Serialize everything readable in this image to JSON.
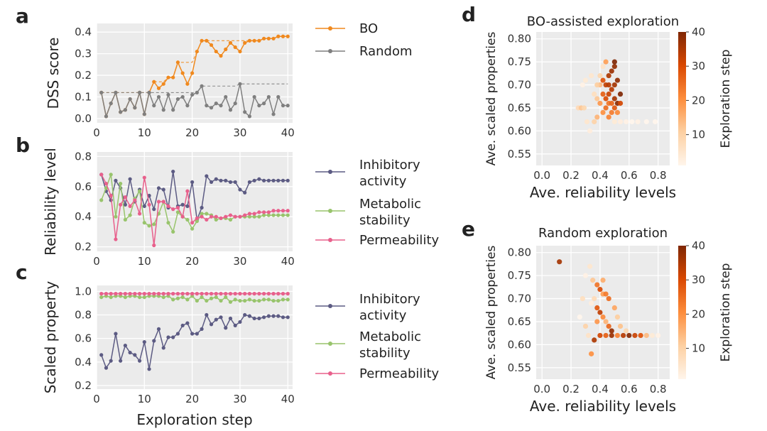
{
  "chart_data": [
    {
      "panel": "a",
      "type": "line",
      "xlabel": "",
      "ylabel": "DSS score",
      "xlim": [
        0,
        41
      ],
      "ylim": [
        -0.02,
        0.44
      ],
      "xticks": [
        "0",
        "10",
        "20",
        "30",
        "40"
      ],
      "yticks": [
        "0.0",
        "0.1",
        "0.2",
        "0.3",
        "0.4"
      ],
      "legend_position": "right",
      "series": [
        {
          "name": "BO",
          "color": "#f0891e",
          "x": [
            1,
            2,
            3,
            4,
            5,
            6,
            7,
            8,
            9,
            10,
            11,
            12,
            13,
            14,
            15,
            16,
            17,
            18,
            19,
            20,
            21,
            22,
            23,
            24,
            25,
            26,
            27,
            28,
            29,
            30,
            31,
            32,
            33,
            34,
            35,
            36,
            37,
            38,
            39,
            40
          ],
          "values": [
            0.12,
            0.01,
            0.07,
            0.12,
            0.03,
            0.04,
            0.09,
            0.05,
            0.12,
            0.02,
            0.12,
            0.17,
            0.14,
            0.16,
            0.19,
            0.19,
            0.26,
            0.21,
            0.16,
            0.21,
            0.31,
            0.36,
            0.36,
            0.34,
            0.31,
            0.29,
            0.32,
            0.35,
            0.33,
            0.31,
            0.35,
            0.36,
            0.36,
            0.36,
            0.37,
            0.37,
            0.37,
            0.38,
            0.38,
            0.38
          ],
          "best_so_far": [
            0.12,
            0.12,
            0.12,
            0.12,
            0.12,
            0.12,
            0.12,
            0.12,
            0.12,
            0.12,
            0.12,
            0.17,
            0.17,
            0.17,
            0.19,
            0.19,
            0.26,
            0.26,
            0.26,
            0.26,
            0.31,
            0.36,
            0.36,
            0.36,
            0.36,
            0.36,
            0.36,
            0.36,
            0.36,
            0.36,
            0.36,
            0.36,
            0.36,
            0.36,
            0.37,
            0.37,
            0.37,
            0.38,
            0.38,
            0.38
          ]
        },
        {
          "name": "Random",
          "color": "#7f7f7f",
          "x": [
            1,
            2,
            3,
            4,
            5,
            6,
            7,
            8,
            9,
            10,
            11,
            12,
            13,
            14,
            15,
            16,
            17,
            18,
            19,
            20,
            21,
            22,
            23,
            24,
            25,
            26,
            27,
            28,
            29,
            30,
            31,
            32,
            33,
            34,
            35,
            36,
            37,
            38,
            39,
            40
          ],
          "values": [
            0.12,
            0.01,
            0.07,
            0.12,
            0.03,
            0.04,
            0.09,
            0.05,
            0.12,
            0.02,
            0.12,
            0.06,
            0.1,
            0.04,
            0.11,
            0.04,
            0.09,
            0.1,
            0.06,
            0.11,
            0.12,
            0.15,
            0.06,
            0.05,
            0.07,
            0.06,
            0.1,
            0.04,
            0.07,
            0.16,
            0.03,
            0.01,
            0.1,
            0.06,
            0.07,
            0.1,
            0.02,
            0.1,
            0.06,
            0.06
          ],
          "best_so_far": [
            0.12,
            0.12,
            0.12,
            0.12,
            0.12,
            0.12,
            0.12,
            0.12,
            0.12,
            0.12,
            0.12,
            0.12,
            0.12,
            0.12,
            0.12,
            0.12,
            0.12,
            0.12,
            0.12,
            0.12,
            0.12,
            0.15,
            0.15,
            0.15,
            0.15,
            0.15,
            0.15,
            0.15,
            0.15,
            0.16,
            0.16,
            0.16,
            0.16,
            0.16,
            0.16,
            0.16,
            0.16,
            0.16,
            0.16,
            0.16
          ]
        }
      ]
    },
    {
      "panel": "b",
      "type": "line",
      "xlabel": "",
      "ylabel": "Reliability level",
      "xlim": [
        0,
        41
      ],
      "ylim": [
        0.17,
        0.83
      ],
      "xticks": [
        "0",
        "10",
        "20",
        "30",
        "40"
      ],
      "yticks": [
        "0.2",
        "0.4",
        "0.6",
        "0.8"
      ],
      "legend_position": "right",
      "series": [
        {
          "name": "Inhibitory activity",
          "label_lines": [
            "Inhibitory",
            "activity"
          ],
          "color": "#5c5b83",
          "values": [
            0.68,
            0.57,
            0.51,
            0.64,
            0.59,
            0.48,
            0.65,
            0.5,
            0.58,
            0.47,
            0.54,
            0.45,
            0.59,
            0.58,
            0.46,
            0.7,
            0.47,
            0.48,
            0.47,
            0.63,
            0.38,
            0.46,
            0.67,
            0.63,
            0.65,
            0.64,
            0.64,
            0.63,
            0.63,
            0.58,
            0.56,
            0.63,
            0.64,
            0.65,
            0.64,
            0.64,
            0.64,
            0.64,
            0.64,
            0.64
          ]
        },
        {
          "name": "Metabolic stability",
          "label_lines": [
            "Metabolic",
            "stability"
          ],
          "color": "#98c46c",
          "values": [
            0.51,
            0.59,
            0.68,
            0.4,
            0.62,
            0.38,
            0.41,
            0.52,
            0.57,
            0.36,
            0.34,
            0.35,
            0.42,
            0.5,
            0.36,
            0.3,
            0.43,
            0.4,
            0.38,
            0.32,
            0.37,
            0.42,
            0.42,
            0.41,
            0.38,
            0.39,
            0.39,
            0.38,
            0.4,
            0.4,
            0.4,
            0.4,
            0.4,
            0.4,
            0.41,
            0.41,
            0.41,
            0.41,
            0.41,
            0.41
          ]
        },
        {
          "name": "Permeability",
          "label_lines": [
            "Permeability"
          ],
          "color": "#e8608c",
          "values": [
            0.68,
            0.62,
            0.54,
            0.25,
            0.48,
            0.53,
            0.47,
            0.51,
            0.42,
            0.66,
            0.48,
            0.21,
            0.5,
            0.5,
            0.47,
            0.45,
            0.46,
            0.4,
            0.57,
            0.36,
            0.39,
            0.4,
            0.38,
            0.4,
            0.4,
            0.39,
            0.4,
            0.41,
            0.4,
            0.4,
            0.41,
            0.42,
            0.42,
            0.43,
            0.43,
            0.43,
            0.44,
            0.44,
            0.44,
            0.44
          ]
        }
      ]
    },
    {
      "panel": "c",
      "type": "line",
      "xlabel": "Exploration step",
      "ylabel": "Scaled property",
      "xlim": [
        0,
        41
      ],
      "ylim": [
        0.17,
        1.05
      ],
      "xticks": [
        "0",
        "10",
        "20",
        "30",
        "40"
      ],
      "yticks": [
        "0.2",
        "0.4",
        "0.6",
        "0.8",
        "1.0"
      ],
      "legend_position": "right",
      "series": [
        {
          "name": "Inhibitory activity",
          "label_lines": [
            "Inhibitory",
            "activity"
          ],
          "color": "#5c5b83",
          "values": [
            0.46,
            0.35,
            0.41,
            0.64,
            0.41,
            0.54,
            0.48,
            0.46,
            0.41,
            0.57,
            0.34,
            0.58,
            0.68,
            0.52,
            0.61,
            0.61,
            0.64,
            0.71,
            0.73,
            0.64,
            0.64,
            0.68,
            0.8,
            0.72,
            0.76,
            0.78,
            0.69,
            0.77,
            0.71,
            0.74,
            0.8,
            0.79,
            0.77,
            0.77,
            0.78,
            0.79,
            0.79,
            0.79,
            0.78,
            0.78
          ]
        },
        {
          "name": "Metabolic stability",
          "label_lines": [
            "Metabolic",
            "stability"
          ],
          "color": "#98c46c",
          "values": [
            0.95,
            0.96,
            0.95,
            0.96,
            0.96,
            0.95,
            0.96,
            0.96,
            0.95,
            0.95,
            0.96,
            0.96,
            0.96,
            0.95,
            0.96,
            0.93,
            0.94,
            0.95,
            0.93,
            0.96,
            0.92,
            0.95,
            0.92,
            0.94,
            0.95,
            0.92,
            0.95,
            0.91,
            0.93,
            0.92,
            0.92,
            0.93,
            0.92,
            0.92,
            0.93,
            0.93,
            0.92,
            0.92,
            0.93,
            0.93
          ]
        },
        {
          "name": "Permeability",
          "label_lines": [
            "Permeability"
          ],
          "color": "#e8608c",
          "values": [
            0.98,
            0.98,
            0.98,
            0.98,
            0.98,
            0.98,
            0.98,
            0.98,
            0.98,
            0.98,
            0.98,
            0.98,
            0.98,
            0.98,
            0.98,
            0.98,
            0.98,
            0.98,
            0.98,
            0.98,
            0.98,
            0.98,
            0.98,
            0.98,
            0.98,
            0.98,
            0.98,
            0.98,
            0.98,
            0.98,
            0.98,
            0.98,
            0.98,
            0.98,
            0.98,
            0.98,
            0.98,
            0.98,
            0.98,
            0.98
          ]
        }
      ]
    },
    {
      "panel": "d",
      "type": "scatter",
      "title": "BO-assisted exploration",
      "xlabel": "Ave. reliability levels",
      "ylabel": "Ave. scaled properties",
      "xlim": [
        -0.04,
        0.88
      ],
      "ylim": [
        0.525,
        0.815
      ],
      "xticks": [
        "0.0",
        "0.2",
        "0.4",
        "0.6",
        "0.8"
      ],
      "yticks": [
        "0.55",
        "0.60",
        "0.65",
        "0.70",
        "0.75",
        "0.80"
      ],
      "colorbar": {
        "label": "Exploration step",
        "min": 1,
        "max": 40,
        "ticks": [
          "10",
          "20",
          "30",
          "40"
        ]
      },
      "points": [
        [
          0.25,
          0.65,
          8
        ],
        [
          0.27,
          0.65,
          12
        ],
        [
          0.29,
          0.65,
          9
        ],
        [
          0.33,
          0.6,
          3
        ],
        [
          0.31,
          0.62,
          5
        ],
        [
          0.36,
          0.62,
          10
        ],
        [
          0.38,
          0.63,
          15
        ],
        [
          0.38,
          0.67,
          12
        ],
        [
          0.4,
          0.7,
          14
        ],
        [
          0.42,
          0.74,
          6
        ],
        [
          0.44,
          0.75,
          18
        ],
        [
          0.4,
          0.72,
          9
        ],
        [
          0.36,
          0.68,
          7
        ],
        [
          0.34,
          0.72,
          5
        ],
        [
          0.3,
          0.71,
          4
        ],
        [
          0.28,
          0.7,
          2
        ],
        [
          0.42,
          0.64,
          20
        ],
        [
          0.46,
          0.63,
          22
        ],
        [
          0.5,
          0.62,
          4
        ],
        [
          0.54,
          0.62,
          3
        ],
        [
          0.58,
          0.62,
          2
        ],
        [
          0.62,
          0.62,
          1
        ],
        [
          0.66,
          0.62,
          2
        ],
        [
          0.72,
          0.62,
          1
        ],
        [
          0.78,
          0.62,
          1
        ],
        [
          0.46,
          0.66,
          24
        ],
        [
          0.48,
          0.66,
          26
        ],
        [
          0.5,
          0.65,
          28
        ],
        [
          0.44,
          0.67,
          30
        ],
        [
          0.46,
          0.68,
          32
        ],
        [
          0.48,
          0.69,
          34
        ],
        [
          0.5,
          0.7,
          36
        ],
        [
          0.52,
          0.71,
          38
        ],
        [
          0.54,
          0.68,
          40
        ],
        [
          0.52,
          0.66,
          39
        ],
        [
          0.44,
          0.7,
          33
        ],
        [
          0.46,
          0.72,
          35
        ],
        [
          0.48,
          0.73,
          37
        ],
        [
          0.5,
          0.74,
          38
        ],
        [
          0.5,
          0.75,
          40
        ],
        [
          0.42,
          0.68,
          27
        ],
        [
          0.44,
          0.65,
          25
        ],
        [
          0.48,
          0.64,
          23
        ],
        [
          0.52,
          0.64,
          21
        ],
        [
          0.54,
          0.66,
          31
        ],
        [
          0.4,
          0.66,
          19
        ],
        [
          0.38,
          0.7,
          11
        ],
        [
          0.42,
          0.71,
          29
        ],
        [
          0.5,
          0.67,
          36
        ],
        [
          0.46,
          0.7,
          34
        ]
      ]
    },
    {
      "panel": "e",
      "type": "scatter",
      "title": "Random exploration",
      "xlabel": "Ave. reliability levels",
      "ylabel": "Ave. scaled properties",
      "xlim": [
        -0.04,
        0.88
      ],
      "ylim": [
        0.525,
        0.815
      ],
      "xticks": [
        "0.0",
        "0.2",
        "0.4",
        "0.6",
        "0.8"
      ],
      "yticks": [
        "0.55",
        "0.60",
        "0.65",
        "0.70",
        "0.75",
        "0.80"
      ],
      "colorbar": {
        "label": "Exploration step",
        "min": 1,
        "max": 40,
        "ticks": [
          "10",
          "20",
          "30",
          "40"
        ]
      },
      "points": [
        [
          0.12,
          0.78,
          36
        ],
        [
          0.3,
          0.75,
          2
        ],
        [
          0.33,
          0.77,
          5
        ],
        [
          0.35,
          0.74,
          12
        ],
        [
          0.38,
          0.73,
          24
        ],
        [
          0.4,
          0.72,
          30
        ],
        [
          0.42,
          0.71,
          18
        ],
        [
          0.36,
          0.7,
          8
        ],
        [
          0.34,
          0.69,
          3
        ],
        [
          0.38,
          0.68,
          28
        ],
        [
          0.4,
          0.67,
          33
        ],
        [
          0.42,
          0.66,
          21
        ],
        [
          0.44,
          0.65,
          15
        ],
        [
          0.46,
          0.64,
          26
        ],
        [
          0.48,
          0.63,
          38
        ],
        [
          0.3,
          0.64,
          10
        ],
        [
          0.32,
          0.62,
          6
        ],
        [
          0.36,
          0.61,
          35
        ],
        [
          0.4,
          0.62,
          31
        ],
        [
          0.44,
          0.62,
          27
        ],
        [
          0.48,
          0.62,
          37
        ],
        [
          0.52,
          0.62,
          22
        ],
        [
          0.56,
          0.62,
          34
        ],
        [
          0.6,
          0.62,
          39
        ],
        [
          0.64,
          0.62,
          32
        ],
        [
          0.68,
          0.62,
          29
        ],
        [
          0.72,
          0.62,
          14
        ],
        [
          0.76,
          0.62,
          4
        ],
        [
          0.8,
          0.62,
          2
        ],
        [
          0.34,
          0.58,
          20
        ],
        [
          0.46,
          0.7,
          25
        ],
        [
          0.5,
          0.68,
          17
        ],
        [
          0.52,
          0.66,
          11
        ],
        [
          0.54,
          0.64,
          13
        ],
        [
          0.58,
          0.63,
          9
        ],
        [
          0.42,
          0.74,
          16
        ],
        [
          0.44,
          0.71,
          23
        ],
        [
          0.28,
          0.7,
          7
        ],
        [
          0.26,
          0.66,
          1
        ],
        [
          0.38,
          0.65,
          19
        ]
      ]
    }
  ]
}
